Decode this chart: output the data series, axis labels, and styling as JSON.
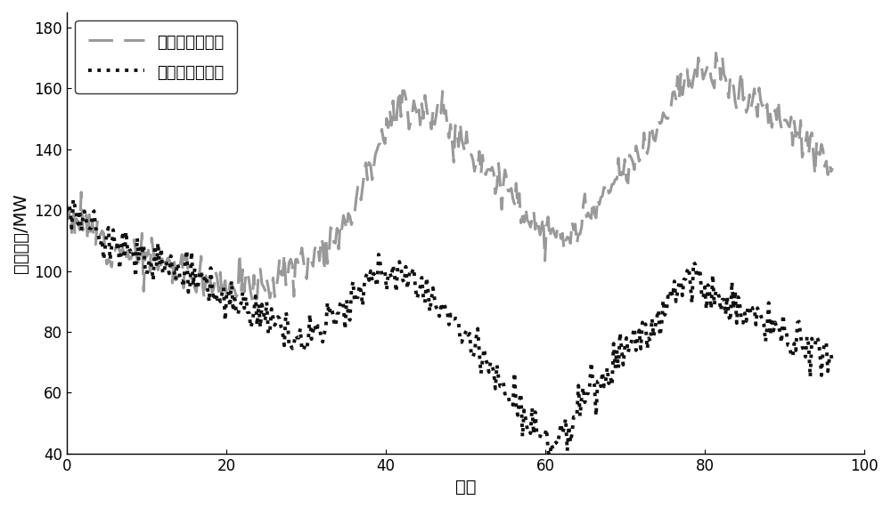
{
  "xlabel": "时刻",
  "ylabel": "风电功率/MW",
  "xlim": [
    0,
    100
  ],
  "ylim": [
    40,
    185
  ],
  "yticks": [
    40,
    60,
    80,
    100,
    120,
    140,
    160,
    180
  ],
  "xticks": [
    0,
    20,
    40,
    60,
    80,
    100
  ],
  "legend1": "预测区间上下界",
  "legend2": "允许区间上下界",
  "gray_color": "#999999",
  "black_color": "#111111",
  "gray_base_x": [
    0,
    5,
    10,
    15,
    20,
    25,
    28,
    32,
    36,
    40,
    44,
    47,
    50,
    54,
    58,
    62,
    66,
    70,
    74,
    76,
    80,
    84,
    88,
    92,
    96
  ],
  "gray_base_y": [
    120,
    110,
    104,
    100,
    96,
    96,
    100,
    108,
    122,
    148,
    154,
    150,
    142,
    130,
    118,
    110,
    120,
    132,
    148,
    158,
    165,
    160,
    152,
    145,
    132
  ],
  "black_base_x": [
    0,
    4,
    8,
    12,
    16,
    20,
    24,
    28,
    32,
    36,
    40,
    44,
    47,
    50,
    54,
    58,
    62,
    65,
    68,
    72,
    76,
    78,
    80,
    84,
    88,
    92,
    96
  ],
  "black_base_y": [
    120,
    112,
    106,
    102,
    98,
    90,
    85,
    80,
    82,
    92,
    100,
    96,
    88,
    78,
    65,
    50,
    47,
    58,
    68,
    78,
    90,
    98,
    95,
    88,
    82,
    76,
    70
  ],
  "noise_seed_gray": 12,
  "noise_seed_black": 37,
  "noise_scale_gray": 3.5,
  "noise_scale_black": 3.5,
  "n_points": 480,
  "figsize": [
    10.0,
    5.71
  ],
  "dpi": 100
}
